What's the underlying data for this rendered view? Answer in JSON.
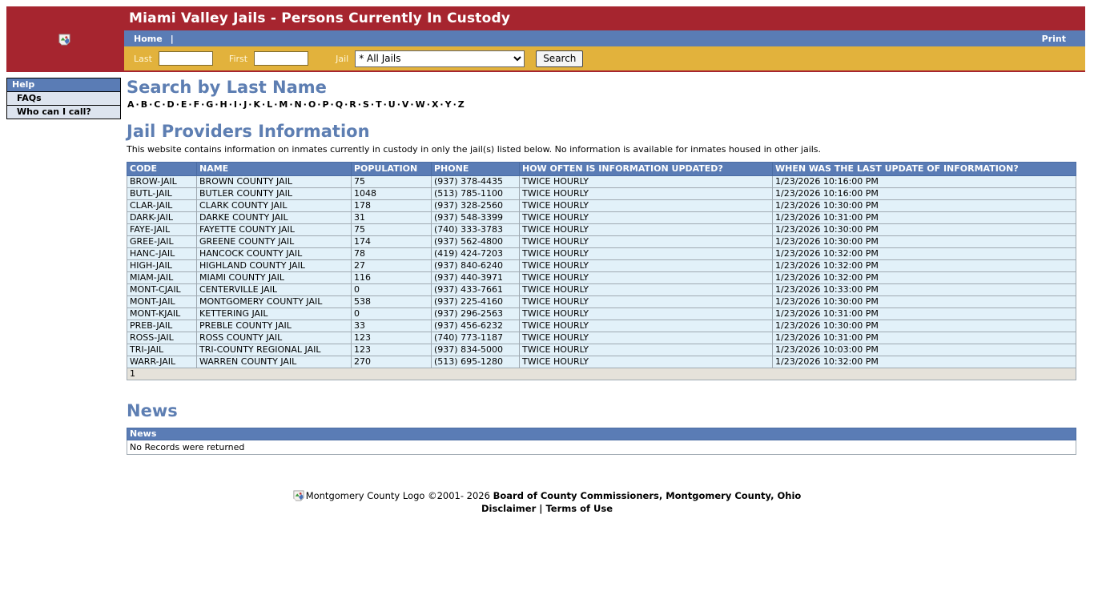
{
  "page": {
    "title": "Miami Valley Jails - Persons Currently In Custody"
  },
  "nav": {
    "home_label": "Home",
    "separator": "|",
    "print_label": "Print"
  },
  "search_bar": {
    "last_label": "Last",
    "first_label": "First",
    "jail_label": "Jail",
    "last_value": "",
    "first_value": "",
    "jail_selected_option": "* All Jails",
    "search_button_label": "Search"
  },
  "sidebar": {
    "header": "Help",
    "items": [
      {
        "label": "FAQs"
      },
      {
        "label": "Who can I call?"
      }
    ]
  },
  "search_section": {
    "heading": "Search by Last Name",
    "letters": [
      "A",
      "B",
      "C",
      "D",
      "E",
      "F",
      "G",
      "H",
      "I",
      "J",
      "K",
      "L",
      "M",
      "N",
      "O",
      "P",
      "Q",
      "R",
      "S",
      "T",
      "U",
      "V",
      "W",
      "X",
      "Y",
      "Z"
    ],
    "separator": "·"
  },
  "providers": {
    "heading": "Jail Providers Information",
    "description": "This website contains information on inmates currently in custody in only the jail(s) listed below. No information is available for inmates housed in other jails.",
    "columns": [
      "CODE",
      "NAME",
      "POPULATION",
      "PHONE",
      "HOW OFTEN IS INFORMATION UPDATED?",
      "WHEN WAS THE LAST UPDATE OF INFORMATION?"
    ],
    "rows": [
      {
        "code": "BROW-JAIL",
        "name": "BROWN COUNTY JAIL",
        "population": "75",
        "phone": "(937) 378-4435",
        "update_frequency": "TWICE HOURLY",
        "last_update": "1/23/2026 10:16:00 PM"
      },
      {
        "code": "BUTL-JAIL",
        "name": "BUTLER COUNTY JAIL",
        "population": "1048",
        "phone": "(513) 785-1100",
        "update_frequency": "TWICE HOURLY",
        "last_update": "1/23/2026 10:16:00 PM"
      },
      {
        "code": "CLAR-JAIL",
        "name": "CLARK COUNTY JAIL",
        "population": "178",
        "phone": "(937) 328-2560",
        "update_frequency": "TWICE HOURLY",
        "last_update": "1/23/2026 10:30:00 PM"
      },
      {
        "code": "DARK-JAIL",
        "name": "DARKE COUNTY JAIL",
        "population": "31",
        "phone": "(937) 548-3399",
        "update_frequency": "TWICE HOURLY",
        "last_update": "1/23/2026 10:31:00 PM"
      },
      {
        "code": "FAYE-JAIL",
        "name": "FAYETTE COUNTY JAIL",
        "population": "75",
        "phone": "(740) 333-3783",
        "update_frequency": "TWICE HOURLY",
        "last_update": "1/23/2026 10:30:00 PM"
      },
      {
        "code": "GREE-JAIL",
        "name": "GREENE COUNTY JAIL",
        "population": "174",
        "phone": "(937) 562-4800",
        "update_frequency": "TWICE HOURLY",
        "last_update": "1/23/2026 10:30:00 PM"
      },
      {
        "code": "HANC-JAIL",
        "name": "HANCOCK COUNTY JAIL",
        "population": "78",
        "phone": "(419) 424-7203",
        "update_frequency": "TWICE HOURLY",
        "last_update": "1/23/2026 10:32:00 PM"
      },
      {
        "code": "HIGH-JAIL",
        "name": "HIGHLAND COUNTY JAIL",
        "population": "27",
        "phone": "(937) 840-6240",
        "update_frequency": "TWICE HOURLY",
        "last_update": "1/23/2026 10:32:00 PM"
      },
      {
        "code": "MIAM-JAIL",
        "name": "MIAMI COUNTY JAIL",
        "population": "116",
        "phone": "(937) 440-3971",
        "update_frequency": "TWICE HOURLY",
        "last_update": "1/23/2026 10:32:00 PM"
      },
      {
        "code": "MONT-CJAIL",
        "name": "CENTERVILLE JAIL",
        "population": "0",
        "phone": "(937) 433-7661",
        "update_frequency": "TWICE HOURLY",
        "last_update": "1/23/2026 10:33:00 PM"
      },
      {
        "code": "MONT-JAIL",
        "name": "MONTGOMERY COUNTY JAIL",
        "population": "538",
        "phone": "(937) 225-4160",
        "update_frequency": "TWICE HOURLY",
        "last_update": "1/23/2026 10:30:00 PM"
      },
      {
        "code": "MONT-KJAIL",
        "name": "KETTERING JAIL",
        "population": "0",
        "phone": "(937) 296-2563",
        "update_frequency": "TWICE HOURLY",
        "last_update": "1/23/2026 10:31:00 PM"
      },
      {
        "code": "PREB-JAIL",
        "name": "PREBLE COUNTY JAIL",
        "population": "33",
        "phone": "(937) 456-6232",
        "update_frequency": "TWICE HOURLY",
        "last_update": "1/23/2026 10:30:00 PM"
      },
      {
        "code": "ROSS-JAIL",
        "name": "ROSS COUNTY JAIL",
        "population": "123",
        "phone": "(740) 773-1187",
        "update_frequency": "TWICE HOURLY",
        "last_update": "1/23/2026 10:31:00 PM"
      },
      {
        "code": "TRI-JAIL",
        "name": "TRI-COUNTY REGIONAL JAIL",
        "population": "123",
        "phone": "(937) 834-5000",
        "update_frequency": "TWICE HOURLY",
        "last_update": "1/23/2026 10:03:00 PM"
      },
      {
        "code": "WARR-JAIL",
        "name": "WARREN COUNTY JAIL",
        "population": "270",
        "phone": "(513) 695-1280",
        "update_frequency": "TWICE HOURLY",
        "last_update": "1/23/2026 10:32:00 PM"
      }
    ],
    "pagination": "1"
  },
  "news": {
    "heading": "News",
    "table_header": "News",
    "empty_message": "No Records were returned"
  },
  "footer": {
    "logo_alt": "Montgomery County Logo",
    "copyright": "©2001- 2026",
    "organization": "Board of County Commissioners, Montgomery County, Ohio",
    "disclaimer_label": "Disclaimer",
    "separator": "|",
    "terms_label": "Terms of Use"
  },
  "colors": {
    "header_red": "#A6252F",
    "nav_blue": "#5A7CB5",
    "search_gold": "#E2B23C",
    "heading_blue": "#5D7EB2",
    "row_light_blue": "#E2F1F9",
    "pagination_gray": "#E5E2DA",
    "sidebar_item": "#DDE4EF"
  }
}
